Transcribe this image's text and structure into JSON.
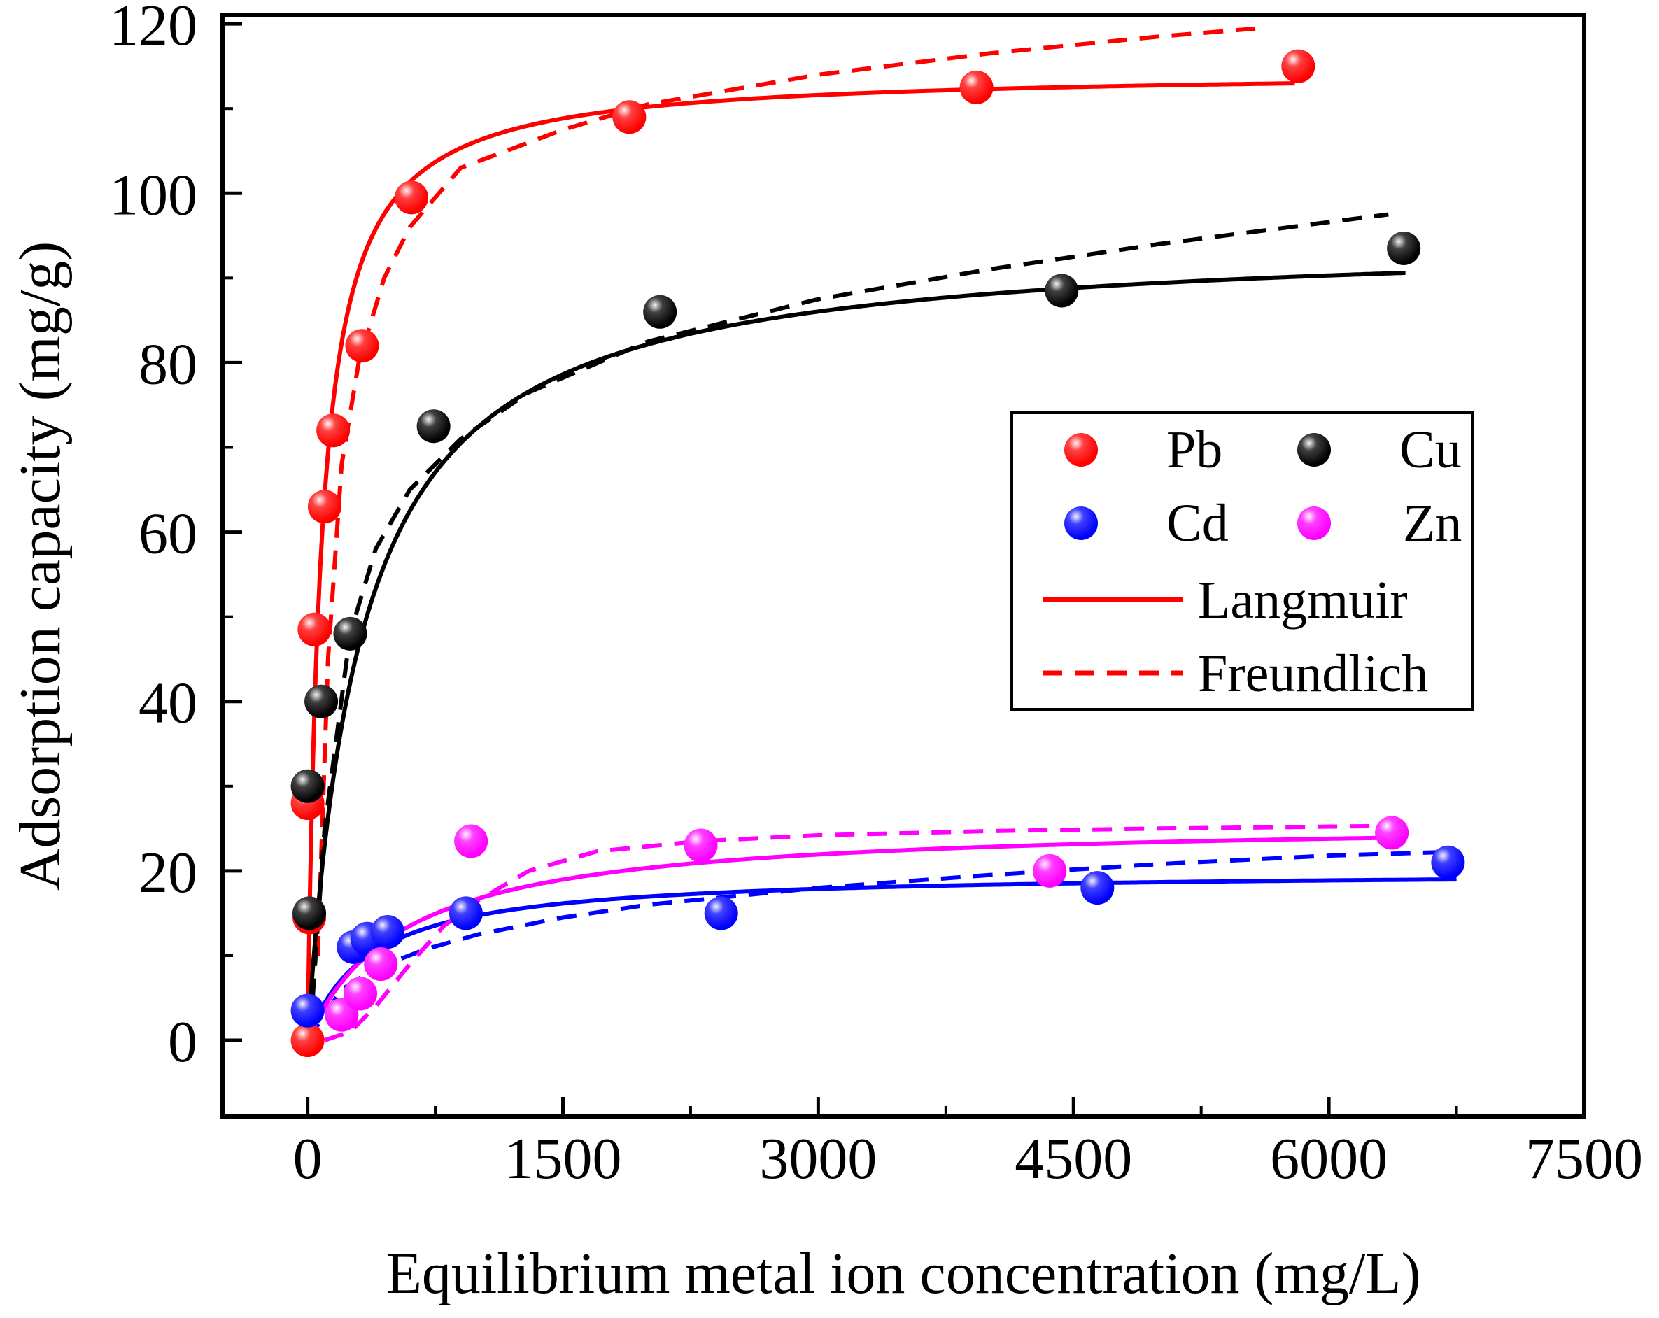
{
  "chart_data": {
    "type": "scatter",
    "title": "",
    "xlabel": "Equilibrium metal ion concentration (mg/L)",
    "ylabel": "Adsorption capacity (mg/g)",
    "xlim": [
      -500,
      7500
    ],
    "ylim": [
      -9,
      121
    ],
    "xticks": [
      0,
      1500,
      3000,
      4500,
      6000,
      7500
    ],
    "yticks": [
      0,
      20,
      40,
      60,
      80,
      100,
      120
    ],
    "xtick_labels": [
      "0",
      "1500",
      "3000",
      "4500",
      "6000",
      "7500"
    ],
    "ytick_labels": [
      "0",
      "20",
      "40",
      "60",
      "80",
      "100",
      "120"
    ],
    "grid": false,
    "legend_position": "right",
    "legend": {
      "entries": [
        {
          "label": "Pb",
          "kind": "marker",
          "color": "#ff0000"
        },
        {
          "label": "Cu",
          "kind": "marker",
          "color": "#000000"
        },
        {
          "label": "Cd",
          "kind": "marker",
          "color": "#0000ff"
        },
        {
          "label": "Zn",
          "kind": "marker",
          "color": "#ff00ff"
        },
        {
          "label": "Langmuir",
          "kind": "solid",
          "color": "#ff0000"
        },
        {
          "label": "Freundlich",
          "kind": "dashed",
          "color": "#ff0000"
        }
      ]
    },
    "series": [
      {
        "name": "Pb",
        "color": "#ff0000",
        "points": [
          [
            0,
            0
          ],
          [
            0,
            28
          ],
          [
            10,
            14.5
          ],
          [
            40,
            48.5
          ],
          [
            100,
            63
          ],
          [
            150,
            72
          ],
          [
            320,
            82
          ],
          [
            610,
            99.5
          ],
          [
            1890,
            109
          ],
          [
            3930,
            112.5
          ],
          [
            5820,
            115
          ]
        ],
        "langmuir": {
          "qmax": 114.5,
          "K": 0.0128,
          "xmax": 5800
        },
        "freundlich": {
          "xmax": 5600,
          "points": [
            [
              60,
              10
            ],
            [
              120,
              45
            ],
            [
              200,
              68
            ],
            [
              300,
              80
            ],
            [
              450,
              90
            ],
            [
              600,
              96
            ],
            [
              900,
              103
            ],
            [
              1500,
              107.5
            ],
            [
              2000,
              110.5
            ],
            [
              3000,
              114
            ],
            [
              4000,
              116.5
            ],
            [
              5000,
              118.5
            ],
            [
              5600,
              119.5
            ]
          ]
        }
      },
      {
        "name": "Cu",
        "color": "#000000",
        "points": [
          [
            0,
            30
          ],
          [
            10,
            15
          ],
          [
            80,
            40
          ],
          [
            250,
            48
          ],
          [
            740,
            72.5
          ],
          [
            2070,
            86
          ],
          [
            4430,
            88.5
          ],
          [
            6440,
            93.5
          ]
        ],
        "langmuir": {
          "qmax": 95,
          "K": 0.0032,
          "xmax": 6450
        },
        "freundlich": {
          "xmax": 6350,
          "points": [
            [
              30,
              5
            ],
            [
              100,
              25
            ],
            [
              250,
              48
            ],
            [
              400,
              58
            ],
            [
              600,
              65
            ],
            [
              900,
              71
            ],
            [
              1300,
              76.5
            ],
            [
              2000,
              82.5
            ],
            [
              3000,
              87.5
            ],
            [
              4000,
              91
            ],
            [
              5000,
              94
            ],
            [
              6350,
              97.5
            ]
          ]
        }
      },
      {
        "name": "Cd",
        "color": "#0000ff",
        "points": [
          [
            0,
            3.5
          ],
          [
            270,
            11
          ],
          [
            350,
            12
          ],
          [
            470,
            12.8
          ],
          [
            930,
            15
          ],
          [
            2430,
            15
          ],
          [
            4640,
            18
          ],
          [
            6700,
            21
          ]
        ],
        "langmuir": {
          "qmax": 20,
          "K": 0.0028,
          "xmax": 6750
        },
        "freundlich": {
          "xmax": 6650,
          "points": [
            [
              0,
              0
            ],
            [
              200,
              6
            ],
            [
              400,
              8.5
            ],
            [
              700,
              10.8
            ],
            [
              1000,
              12.5
            ],
            [
              1500,
              14.5
            ],
            [
              2000,
              16
            ],
            [
              3000,
              18
            ],
            [
              4000,
              19.5
            ],
            [
              5000,
              20.8
            ],
            [
              6000,
              21.8
            ],
            [
              6650,
              22.2
            ]
          ]
        }
      },
      {
        "name": "Zn",
        "color": "#ff00ff",
        "points": [
          [
            200,
            3
          ],
          [
            310,
            5.5
          ],
          [
            430,
            9
          ],
          [
            960,
            23.5
          ],
          [
            2310,
            23
          ],
          [
            4360,
            20
          ],
          [
            6370,
            24.5
          ]
        ],
        "langmuir": {
          "qmax": 26,
          "K": 0.0018,
          "xmax": 6350
        },
        "freundlich": {
          "xmax": 6350,
          "points": [
            [
              100,
              0
            ],
            [
              250,
              1
            ],
            [
              400,
              4
            ],
            [
              600,
              9
            ],
            [
              800,
              13.5
            ],
            [
              1000,
              16.5
            ],
            [
              1300,
              20
            ],
            [
              1700,
              22.3
            ],
            [
              2300,
              23.5
            ],
            [
              3000,
              24.2
            ],
            [
              4000,
              24.7
            ],
            [
              5000,
              25
            ],
            [
              6350,
              25.3
            ]
          ]
        }
      }
    ]
  }
}
